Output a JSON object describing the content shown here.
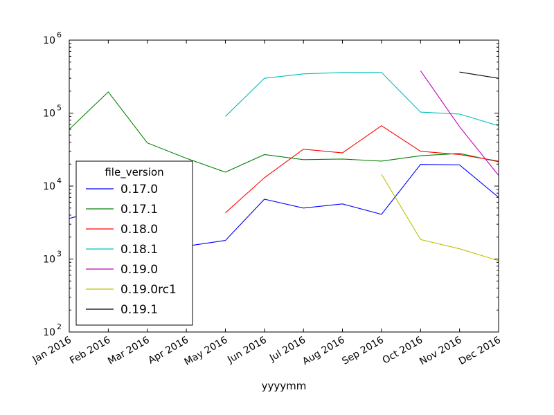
{
  "chart_data": {
    "type": "line",
    "xlabel": "yyyymm",
    "ylabel": "",
    "yscale": "log",
    "ylim": [
      100,
      1000000
    ],
    "y_ticks": [
      {
        "value": 100,
        "base": "10",
        "exp": "2"
      },
      {
        "value": 1000,
        "base": "10",
        "exp": "3"
      },
      {
        "value": 10000,
        "base": "10",
        "exp": "4"
      },
      {
        "value": 100000,
        "base": "10",
        "exp": "5"
      },
      {
        "value": 1000000,
        "base": "10",
        "exp": "6"
      }
    ],
    "categories": [
      "Jan 2016",
      "Feb 2016",
      "Mar 2016",
      "Apr 2016",
      "May 2016",
      "Jun 2016",
      "Jul 2016",
      "Aug 2016",
      "Sep 2016",
      "Oct 2016",
      "Nov 2016",
      "Dec 2016"
    ],
    "legend": {
      "title": "file_version",
      "position": "lower-left"
    },
    "series": [
      {
        "name": "0.17.0",
        "color": "#0000ff",
        "values": [
          3600,
          5000,
          1700,
          1500,
          1800,
          6600,
          5000,
          5700,
          4100,
          19800,
          19500,
          7000
        ]
      },
      {
        "name": "0.17.1",
        "color": "#008000",
        "values": [
          60000,
          195000,
          39000,
          24000,
          15500,
          27000,
          23000,
          23500,
          22000,
          26000,
          28000,
          21500
        ]
      },
      {
        "name": "0.18.0",
        "color": "#ff0000",
        "values": [
          null,
          null,
          null,
          null,
          4300,
          13000,
          32000,
          28500,
          67000,
          30000,
          27000,
          22000
        ]
      },
      {
        "name": "0.18.1",
        "color": "#00bfbf",
        "values": [
          null,
          null,
          null,
          null,
          90000,
          300000,
          345000,
          360000,
          360000,
          103000,
          97000,
          67000
        ]
      },
      {
        "name": "0.19.0",
        "color": "#bf00bf",
        "values": [
          null,
          null,
          null,
          null,
          null,
          null,
          null,
          null,
          null,
          380000,
          65000,
          14000
        ]
      },
      {
        "name": "0.19.0rc1",
        "color": "#bfbf00",
        "values": [
          null,
          null,
          null,
          null,
          null,
          null,
          null,
          null,
          14500,
          1850,
          1380,
          950
        ]
      },
      {
        "name": "0.19.1",
        "color": "#000000",
        "values": [
          null,
          null,
          null,
          null,
          null,
          null,
          null,
          null,
          null,
          null,
          365000,
          300000
        ]
      }
    ]
  }
}
